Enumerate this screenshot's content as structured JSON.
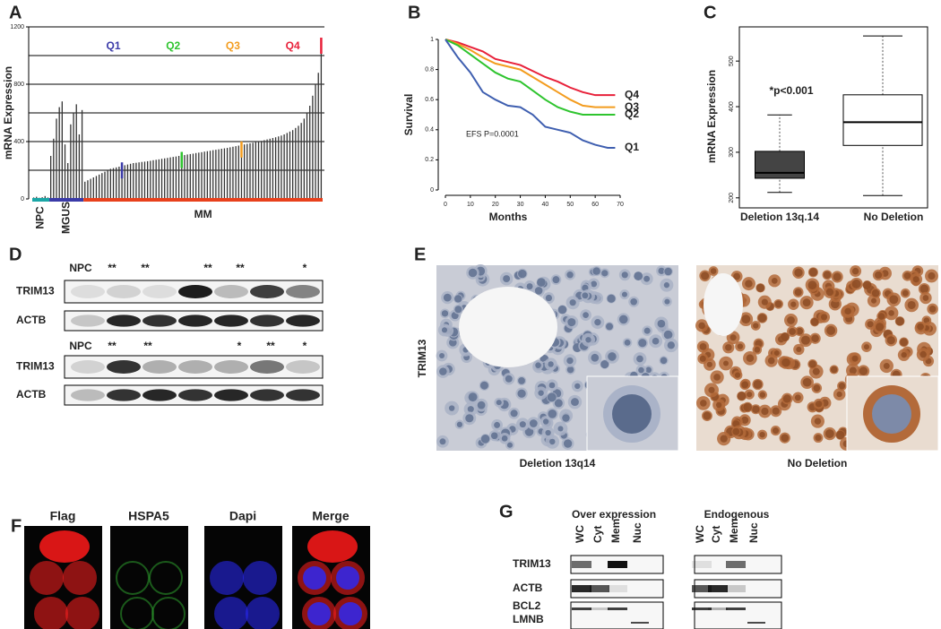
{
  "chart_data": [
    {
      "type": "bar",
      "panel": "A",
      "y_label": "mRNA Expression",
      "ylim": [
        0,
        1200
      ],
      "yticks": [
        0,
        400,
        800,
        1200
      ],
      "gridlines": [
        200,
        400,
        600,
        800,
        1000,
        1200
      ],
      "bar_color": "#333333",
      "quartiles": [
        {
          "label": "Q1",
          "color": "#3a3aa8"
        },
        {
          "label": "Q2",
          "color": "#2ec42e"
        },
        {
          "label": "Q3",
          "color": "#f39c1e"
        },
        {
          "label": "Q4",
          "color": "#e8213a"
        }
      ],
      "series": [
        {
          "name": "NPC",
          "color": "#1aa6a6",
          "values": [
            10,
            15,
            8,
            12,
            20,
            10
          ]
        },
        {
          "name": "MGUS",
          "color": "#3a3aa8",
          "values": [
            300,
            420,
            560,
            640,
            680,
            380,
            250,
            520,
            600,
            660,
            450,
            620
          ]
        },
        {
          "name": "MM",
          "color": "#e8401c",
          "values": [
            120,
            130,
            140,
            150,
            160,
            170,
            180,
            190,
            200,
            210,
            215,
            220,
            225,
            230,
            235,
            240,
            245,
            250,
            252,
            255,
            258,
            260,
            263,
            266,
            270,
            273,
            276,
            280,
            283,
            286,
            290,
            293,
            296,
            300,
            303,
            306,
            310,
            313,
            316,
            320,
            323,
            326,
            330,
            333,
            336,
            340,
            343,
            346,
            350,
            353,
            356,
            360,
            364,
            368,
            372,
            376,
            380,
            384,
            388,
            392,
            396,
            400,
            405,
            410,
            415,
            420,
            425,
            430,
            436,
            442,
            450,
            460,
            470,
            480,
            495,
            510,
            530,
            560,
            600,
            650,
            720,
            800,
            880,
            1100
          ]
        }
      ]
    },
    {
      "type": "line",
      "panel": "B",
      "x_label": "Months",
      "y_label": "Survival",
      "annotation": "EFS P=0.0001",
      "xlim": [
        0,
        70
      ],
      "ylim": [
        0,
        1
      ],
      "xticks": [
        0,
        10,
        20,
        30,
        40,
        50,
        60,
        70
      ],
      "yticks": [
        0,
        0.2,
        0.4,
        0.6,
        0.8,
        1
      ],
      "x": [
        0,
        5,
        10,
        15,
        20,
        25,
        30,
        35,
        40,
        45,
        50,
        55,
        60,
        65,
        68
      ],
      "series": [
        {
          "name": "Q4",
          "color": "#e8213a",
          "values": [
            1,
            0.98,
            0.95,
            0.92,
            0.87,
            0.85,
            0.83,
            0.79,
            0.75,
            0.72,
            0.68,
            0.65,
            0.63,
            0.63,
            0.63
          ]
        },
        {
          "name": "Q3",
          "color": "#f39c1e",
          "values": [
            1,
            0.97,
            0.93,
            0.88,
            0.84,
            0.82,
            0.8,
            0.75,
            0.7,
            0.65,
            0.6,
            0.56,
            0.55,
            0.55,
            0.55
          ]
        },
        {
          "name": "Q2",
          "color": "#2ec42e",
          "values": [
            1,
            0.96,
            0.9,
            0.84,
            0.78,
            0.74,
            0.72,
            0.66,
            0.6,
            0.55,
            0.52,
            0.5,
            0.5,
            0.5,
            0.5
          ]
        },
        {
          "name": "Q1",
          "color": "#3f5fb0",
          "values": [
            1,
            0.88,
            0.78,
            0.65,
            0.6,
            0.56,
            0.55,
            0.5,
            0.42,
            0.4,
            0.38,
            0.33,
            0.3,
            0.28,
            0.28
          ]
        }
      ]
    },
    {
      "type": "box",
      "panel": "C",
      "y_label": "mRNA Expression",
      "annotation": "*p<0.001",
      "ylim": [
        178,
        575
      ],
      "yticks": [
        200,
        300,
        400,
        500
      ],
      "categories": [
        "Deletion 13q.14",
        "No Deletion"
      ],
      "box_colors": [
        "#444444",
        "#ffffff"
      ],
      "boxes": [
        {
          "whislo": 212,
          "q1": 243,
          "med": 255,
          "q3": 302,
          "whishi": 382
        },
        {
          "whislo": 205,
          "q1": 315,
          "med": 366,
          "q3": 426,
          "whishi": 555
        }
      ]
    }
  ],
  "panels": {
    "D": {
      "letter": "D",
      "blots": [
        {
          "header": [
            "NPC",
            "**",
            "**",
            "**",
            "**",
            "*"
          ],
          "rows": [
            "TRIM13",
            "ACTB"
          ]
        },
        {
          "header": [
            "NPC",
            "**",
            "**",
            "*",
            "**",
            "*"
          ],
          "rows": [
            "TRIM13",
            "ACTB"
          ]
        }
      ]
    },
    "E": {
      "letter": "E",
      "stain": "TRIM13",
      "captions": [
        "Deletion 13q14",
        "No Deletion"
      ]
    },
    "F": {
      "letter": "F",
      "channels": [
        "Flag",
        "HSPA5",
        "Dapi",
        "Merge"
      ]
    },
    "G": {
      "letter": "G",
      "groups": [
        {
          "title": "Over expression",
          "lanes": [
            "WC",
            "Cyt",
            "Mem",
            "Nuc"
          ]
        },
        {
          "title": "Endogenous",
          "lanes": [
            "WC",
            "Cyt",
            "Mem",
            "Nuc"
          ]
        }
      ],
      "rows": [
        "TRIM13",
        "ACTB",
        "BCL2",
        "LMNB"
      ]
    }
  }
}
